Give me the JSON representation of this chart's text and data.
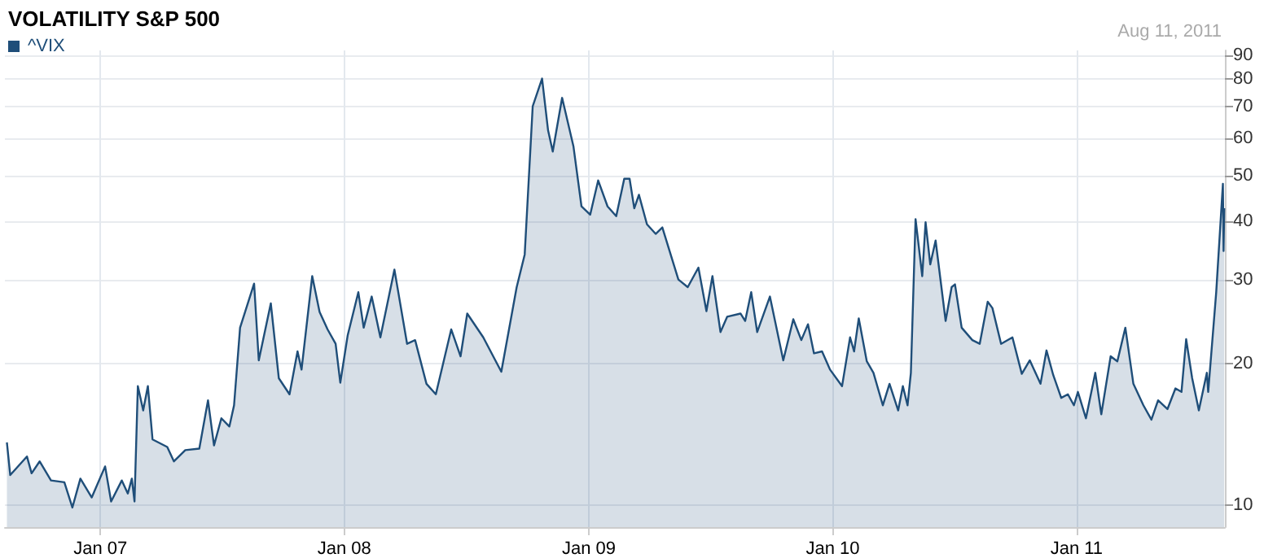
{
  "chart_data": {
    "type": "area",
    "title": "VOLATILITY S&P 500",
    "annotations": [
      "Aug 11, 2011"
    ],
    "x": [
      "2006-08-14",
      "2006-08-19",
      "2006-09-13",
      "2006-09-20",
      "2006-10-02",
      "2006-10-19",
      "2006-11-08",
      "2006-11-20",
      "2006-12-02",
      "2006-12-19",
      "2007-01-08",
      "2007-01-17",
      "2007-02-02",
      "2007-02-11",
      "2007-02-17",
      "2007-02-21",
      "2007-02-26",
      "2007-03-06",
      "2007-03-13",
      "2007-03-20",
      "2007-04-11",
      "2007-04-21",
      "2007-05-08",
      "2007-05-29",
      "2007-06-11",
      "2007-06-20",
      "2007-07-01",
      "2007-07-13",
      "2007-07-20",
      "2007-07-29",
      "2007-08-19",
      "2007-08-26",
      "2007-09-13",
      "2007-09-25",
      "2007-10-11",
      "2007-10-23",
      "2007-10-29",
      "2007-11-14",
      "2007-11-25",
      "2007-12-07",
      "2007-12-19",
      "2007-12-26",
      "2008-01-06",
      "2008-01-22",
      "2008-01-30",
      "2008-02-11",
      "2008-02-24",
      "2008-03-16",
      "2008-04-04",
      "2008-04-16",
      "2008-05-03",
      "2008-05-17",
      "2008-06-09",
      "2008-06-23",
      "2008-07-03",
      "2008-07-27",
      "2008-08-23",
      "2008-09-15",
      "2008-09-27",
      "2008-10-09",
      "2008-10-23",
      "2008-11-01",
      "2008-11-08",
      "2008-11-22",
      "2008-12-09",
      "2008-12-21",
      "2009-01-03",
      "2009-01-15",
      "2009-01-29",
      "2009-02-11",
      "2009-02-23",
      "2009-03-03",
      "2009-03-10",
      "2009-03-17",
      "2009-03-29",
      "2009-04-11",
      "2009-04-21",
      "2009-05-15",
      "2009-05-29",
      "2009-06-14",
      "2009-06-26",
      "2009-07-05",
      "2009-07-17",
      "2009-07-27",
      "2009-08-16",
      "2009-08-23",
      "2009-09-01",
      "2009-09-10",
      "2009-09-29",
      "2009-10-19",
      "2009-11-03",
      "2009-11-15",
      "2009-11-25",
      "2009-12-04",
      "2009-12-16",
      "2009-12-28",
      "2010-01-15",
      "2010-01-27",
      "2010-02-02",
      "2010-02-09",
      "2010-02-21",
      "2010-03-03",
      "2010-03-17",
      "2010-03-27",
      "2010-04-09",
      "2010-04-16",
      "2010-04-23",
      "2010-04-28",
      "2010-05-05",
      "2010-05-15",
      "2010-05-20",
      "2010-05-27",
      "2010-06-04",
      "2010-06-19",
      "2010-06-28",
      "2010-07-03",
      "2010-07-13",
      "2010-07-29",
      "2010-08-09",
      "2010-08-21",
      "2010-08-28",
      "2010-09-10",
      "2010-09-27",
      "2010-10-11",
      "2010-10-23",
      "2010-11-08",
      "2010-11-17",
      "2010-11-27",
      "2010-12-09",
      "2010-12-19",
      "2010-12-28",
      "2011-01-03",
      "2011-01-15",
      "2011-01-29",
      "2011-02-07",
      "2011-02-21",
      "2011-03-03",
      "2011-03-15",
      "2011-03-27",
      "2011-04-11",
      "2011-04-23",
      "2011-05-03",
      "2011-05-17",
      "2011-05-29",
      "2011-06-07",
      "2011-06-14",
      "2011-06-23",
      "2011-07-03",
      "2011-07-15",
      "2011-07-17",
      "2011-07-29",
      "2011-08-08",
      "2011-08-09",
      "2011-08-10"
    ],
    "series": [
      {
        "name": "^VIX",
        "color": "#1f4e79",
        "values": [
          13.6,
          11.6,
          12.7,
          11.7,
          12.4,
          11.3,
          11.2,
          9.9,
          11.4,
          10.4,
          12.1,
          10.2,
          11.3,
          10.6,
          11.4,
          10.2,
          17.9,
          15.9,
          17.9,
          13.8,
          13.3,
          12.4,
          13.1,
          13.2,
          16.7,
          13.4,
          15.3,
          14.7,
          16.3,
          23.8,
          29.5,
          20.3,
          26.8,
          18.6,
          17.2,
          21.2,
          19.4,
          30.6,
          25.7,
          23.6,
          22.0,
          18.2,
          22.9,
          28.3,
          23.8,
          27.7,
          22.7,
          31.6,
          22.0,
          22.4,
          18.1,
          17.2,
          23.6,
          20.7,
          25.5,
          22.7,
          19.2,
          29.0,
          34.0,
          70.1,
          80.2,
          62.3,
          56.2,
          73.0,
          57.6,
          43.0,
          41.3,
          48.8,
          43.0,
          41.0,
          49.2,
          49.2,
          42.6,
          45.5,
          39.4,
          37.6,
          38.8,
          30.1,
          29.0,
          31.9,
          25.8,
          30.6,
          23.3,
          25.1,
          25.5,
          24.6,
          28.3,
          23.3,
          27.7,
          20.3,
          24.8,
          22.4,
          24.2,
          21.0,
          21.2,
          19.4,
          17.9,
          22.7,
          21.2,
          24.9,
          20.2,
          19.1,
          16.3,
          18.1,
          15.9,
          17.9,
          16.3,
          19.1,
          40.4,
          30.6,
          39.8,
          32.4,
          36.4,
          24.6,
          29.0,
          29.4,
          23.8,
          22.4,
          22.0,
          27.0,
          26.2,
          22.0,
          22.7,
          19.0,
          20.3,
          18.1,
          21.3,
          18.9,
          16.9,
          17.2,
          16.3,
          17.4,
          15.3,
          19.1,
          15.6,
          20.7,
          20.2,
          23.8,
          18.1,
          16.3,
          15.2,
          16.7,
          16.0,
          17.7,
          17.4,
          22.5,
          18.6,
          15.9,
          19.1,
          17.4,
          28.3,
          48.0,
          34.6,
          42.6
        ]
      }
    ],
    "xlim": [
      "2006-08-11",
      "2011-08-11"
    ],
    "xticks": [
      {
        "value": "2007-01-01",
        "label": "Jan 07"
      },
      {
        "value": "2008-01-01",
        "label": "Jan 08"
      },
      {
        "value": "2009-01-01",
        "label": "Jan 09"
      },
      {
        "value": "2010-01-01",
        "label": "Jan 10"
      },
      {
        "value": "2011-01-01",
        "label": "Jan 11"
      }
    ],
    "ylim": [
      9,
      92
    ],
    "yticks": [
      10,
      20,
      30,
      40,
      50,
      60,
      70,
      80,
      90
    ],
    "log": "y",
    "grid": true,
    "legend": "top left",
    "marker": "none",
    "line_style": "solid"
  }
}
